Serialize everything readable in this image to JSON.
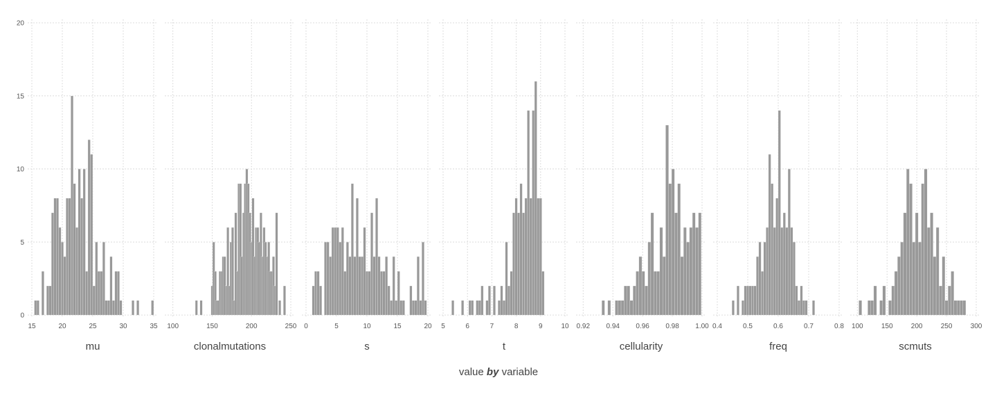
{
  "chart_data": {
    "type": "bar",
    "xlabel": {
      "value": "value",
      "by": "by",
      "variable": "variable"
    },
    "ylim": [
      0,
      20
    ],
    "yticks": [
      0,
      5,
      10,
      15,
      20
    ],
    "grid": true,
    "bar_color": "#999999",
    "grid_color": "#dcdcdc",
    "panels": [
      {
        "name": "mu",
        "xlim": [
          15,
          35
        ],
        "xticks": [
          "15",
          "20",
          "25",
          "30",
          "35"
        ],
        "bin_width": 0.4,
        "bins": [
          [
            15.6,
            1
          ],
          [
            16.0,
            1
          ],
          [
            16.8,
            3
          ],
          [
            17.6,
            2
          ],
          [
            18.0,
            2
          ],
          [
            18.4,
            7
          ],
          [
            18.8,
            8
          ],
          [
            19.2,
            8
          ],
          [
            19.6,
            6
          ],
          [
            20.0,
            5
          ],
          [
            20.4,
            4
          ],
          [
            20.8,
            8
          ],
          [
            21.2,
            8
          ],
          [
            21.6,
            15
          ],
          [
            22.0,
            9
          ],
          [
            22.4,
            6
          ],
          [
            22.8,
            10
          ],
          [
            23.2,
            8
          ],
          [
            23.6,
            10
          ],
          [
            24.0,
            3
          ],
          [
            24.4,
            12
          ],
          [
            24.8,
            11
          ],
          [
            25.2,
            2
          ],
          [
            25.6,
            5
          ],
          [
            26.0,
            3
          ],
          [
            26.4,
            3
          ],
          [
            26.8,
            5
          ],
          [
            27.2,
            1
          ],
          [
            27.6,
            1
          ],
          [
            28.0,
            4
          ],
          [
            28.4,
            1
          ],
          [
            28.8,
            3
          ],
          [
            29.2,
            3
          ],
          [
            29.6,
            1
          ],
          [
            31.6,
            1
          ],
          [
            32.4,
            1
          ],
          [
            34.8,
            1
          ]
        ]
      },
      {
        "name": "clonalmutations",
        "xlim": [
          95,
          250
        ],
        "xticks": [
          "100",
          "150",
          "200",
          "250"
        ],
        "bin_width": 3,
        "bins": [
          [
            130,
            1
          ],
          [
            136,
            1
          ],
          [
            150,
            2
          ],
          [
            152,
            5
          ],
          [
            154,
            3
          ],
          [
            156,
            1
          ],
          [
            158,
            1
          ],
          [
            160,
            3
          ],
          [
            162,
            3
          ],
          [
            164,
            4
          ],
          [
            166,
            4
          ],
          [
            168,
            2
          ],
          [
            170,
            6
          ],
          [
            172,
            2
          ],
          [
            174,
            5
          ],
          [
            176,
            6
          ],
          [
            178,
            1
          ],
          [
            180,
            7
          ],
          [
            182,
            3
          ],
          [
            184,
            9
          ],
          [
            186,
            9
          ],
          [
            188,
            4
          ],
          [
            190,
            7
          ],
          [
            192,
            9
          ],
          [
            194,
            10
          ],
          [
            196,
            9
          ],
          [
            198,
            7
          ],
          [
            200,
            5
          ],
          [
            202,
            8
          ],
          [
            204,
            4
          ],
          [
            206,
            6
          ],
          [
            208,
            6
          ],
          [
            210,
            5
          ],
          [
            212,
            7
          ],
          [
            214,
            4
          ],
          [
            216,
            6
          ],
          [
            218,
            5
          ],
          [
            220,
            4
          ],
          [
            222,
            5
          ],
          [
            224,
            3
          ],
          [
            226,
            3
          ],
          [
            228,
            4
          ],
          [
            230,
            2
          ],
          [
            232,
            7
          ],
          [
            236,
            1
          ],
          [
            242,
            2
          ]
        ]
      },
      {
        "name": "s",
        "xlim": [
          0,
          20
        ],
        "xticks": [
          "0",
          "5",
          "10",
          "15",
          "20"
        ],
        "bin_width": 0.4,
        "bins": [
          [
            1.2,
            2
          ],
          [
            1.6,
            3
          ],
          [
            2.0,
            3
          ],
          [
            2.4,
            2
          ],
          [
            3.2,
            5
          ],
          [
            3.6,
            5
          ],
          [
            4.0,
            4
          ],
          [
            4.4,
            6
          ],
          [
            4.8,
            6
          ],
          [
            5.2,
            6
          ],
          [
            5.6,
            5
          ],
          [
            6.0,
            6
          ],
          [
            6.4,
            3
          ],
          [
            6.8,
            5
          ],
          [
            7.2,
            4
          ],
          [
            7.6,
            9
          ],
          [
            8.0,
            4
          ],
          [
            8.4,
            8
          ],
          [
            8.8,
            4
          ],
          [
            9.2,
            4
          ],
          [
            9.6,
            6
          ],
          [
            10.0,
            3
          ],
          [
            10.4,
            3
          ],
          [
            10.8,
            7
          ],
          [
            11.2,
            4
          ],
          [
            11.6,
            8
          ],
          [
            12.0,
            4
          ],
          [
            12.4,
            3
          ],
          [
            12.8,
            3
          ],
          [
            13.2,
            4
          ],
          [
            13.6,
            2
          ],
          [
            14.0,
            1
          ],
          [
            14.4,
            4
          ],
          [
            14.8,
            1
          ],
          [
            15.2,
            3
          ],
          [
            15.6,
            1
          ],
          [
            16.0,
            1
          ],
          [
            17.2,
            2
          ],
          [
            17.6,
            1
          ],
          [
            18.0,
            1
          ],
          [
            18.4,
            4
          ],
          [
            18.8,
            1
          ],
          [
            19.2,
            5
          ],
          [
            19.6,
            1
          ]
        ]
      },
      {
        "name": "t",
        "xlim": [
          5,
          10
        ],
        "xticks": [
          "5",
          "6",
          "7",
          "8",
          "9",
          "10"
        ],
        "bin_width": 0.1,
        "bins": [
          [
            5.4,
            1
          ],
          [
            5.8,
            1
          ],
          [
            6.1,
            1
          ],
          [
            6.2,
            1
          ],
          [
            6.4,
            1
          ],
          [
            6.5,
            1
          ],
          [
            6.6,
            2
          ],
          [
            6.8,
            1
          ],
          [
            6.9,
            2
          ],
          [
            7.1,
            2
          ],
          [
            7.3,
            1
          ],
          [
            7.4,
            2
          ],
          [
            7.5,
            1
          ],
          [
            7.6,
            5
          ],
          [
            7.7,
            2
          ],
          [
            7.8,
            3
          ],
          [
            7.9,
            7
          ],
          [
            8.0,
            8
          ],
          [
            8.1,
            7
          ],
          [
            8.2,
            9
          ],
          [
            8.3,
            7
          ],
          [
            8.4,
            8
          ],
          [
            8.5,
            14
          ],
          [
            8.6,
            8
          ],
          [
            8.7,
            14
          ],
          [
            8.8,
            16
          ],
          [
            8.9,
            8
          ],
          [
            9.0,
            8
          ],
          [
            9.1,
            3
          ]
        ]
      },
      {
        "name": "cellularity",
        "xlim": [
          0.918,
          1.0
        ],
        "xticks": [
          "0.92",
          "0.94",
          "0.96",
          "0.98",
          "1.00"
        ],
        "bin_width": 0.002,
        "bins": [
          [
            0.9335,
            1
          ],
          [
            0.9375,
            1
          ],
          [
            0.9425,
            1
          ],
          [
            0.9445,
            1
          ],
          [
            0.9465,
            1
          ],
          [
            0.9485,
            2
          ],
          [
            0.9505,
            2
          ],
          [
            0.9525,
            1
          ],
          [
            0.9545,
            2
          ],
          [
            0.9565,
            3
          ],
          [
            0.9585,
            4
          ],
          [
            0.9605,
            3
          ],
          [
            0.9625,
            2
          ],
          [
            0.9645,
            5
          ],
          [
            0.9665,
            7
          ],
          [
            0.9685,
            3
          ],
          [
            0.9705,
            3
          ],
          [
            0.9725,
            6
          ],
          [
            0.9745,
            4
          ],
          [
            0.9765,
            13
          ],
          [
            0.9785,
            9
          ],
          [
            0.9805,
            10
          ],
          [
            0.9825,
            7
          ],
          [
            0.9845,
            9
          ],
          [
            0.9865,
            4
          ],
          [
            0.9885,
            6
          ],
          [
            0.9905,
            5
          ],
          [
            0.9925,
            6
          ],
          [
            0.9945,
            7
          ],
          [
            0.9965,
            6
          ],
          [
            0.9985,
            7
          ]
        ]
      },
      {
        "name": "freq",
        "xlim": [
          0.4,
          0.8
        ],
        "xticks": [
          "0.4",
          "0.5",
          "0.6",
          "0.7",
          "0.8"
        ],
        "bin_width": 0.008,
        "bins": [
          [
            0.452,
            1
          ],
          [
            0.468,
            2
          ],
          [
            0.484,
            1
          ],
          [
            0.492,
            2
          ],
          [
            0.5,
            2
          ],
          [
            0.508,
            2
          ],
          [
            0.516,
            2
          ],
          [
            0.524,
            2
          ],
          [
            0.532,
            4
          ],
          [
            0.54,
            5
          ],
          [
            0.548,
            3
          ],
          [
            0.556,
            5
          ],
          [
            0.564,
            6
          ],
          [
            0.572,
            11
          ],
          [
            0.58,
            9
          ],
          [
            0.588,
            6
          ],
          [
            0.596,
            8
          ],
          [
            0.604,
            14
          ],
          [
            0.612,
            6
          ],
          [
            0.62,
            7
          ],
          [
            0.628,
            6
          ],
          [
            0.636,
            10
          ],
          [
            0.644,
            6
          ],
          [
            0.652,
            5
          ],
          [
            0.66,
            2
          ],
          [
            0.668,
            1
          ],
          [
            0.676,
            2
          ],
          [
            0.684,
            1
          ],
          [
            0.692,
            1
          ],
          [
            0.716,
            1
          ]
        ]
      },
      {
        "name": "scmuts",
        "xlim": [
          95,
          300
        ],
        "xticks": [
          "100",
          "150",
          "200",
          "250",
          "300"
        ],
        "bin_width": 5,
        "bins": [
          [
            105,
            1
          ],
          [
            120,
            1
          ],
          [
            125,
            1
          ],
          [
            130,
            2
          ],
          [
            140,
            1
          ],
          [
            145,
            2
          ],
          [
            155,
            1
          ],
          [
            160,
            2
          ],
          [
            165,
            3
          ],
          [
            170,
            4
          ],
          [
            175,
            5
          ],
          [
            180,
            7
          ],
          [
            185,
            10
          ],
          [
            190,
            9
          ],
          [
            195,
            5
          ],
          [
            200,
            7
          ],
          [
            205,
            5
          ],
          [
            210,
            9
          ],
          [
            215,
            10
          ],
          [
            220,
            6
          ],
          [
            225,
            7
          ],
          [
            230,
            4
          ],
          [
            235,
            6
          ],
          [
            240,
            2
          ],
          [
            245,
            4
          ],
          [
            250,
            1
          ],
          [
            255,
            2
          ],
          [
            260,
            3
          ],
          [
            265,
            1
          ],
          [
            270,
            1
          ],
          [
            275,
            1
          ],
          [
            280,
            1
          ]
        ]
      }
    ]
  }
}
